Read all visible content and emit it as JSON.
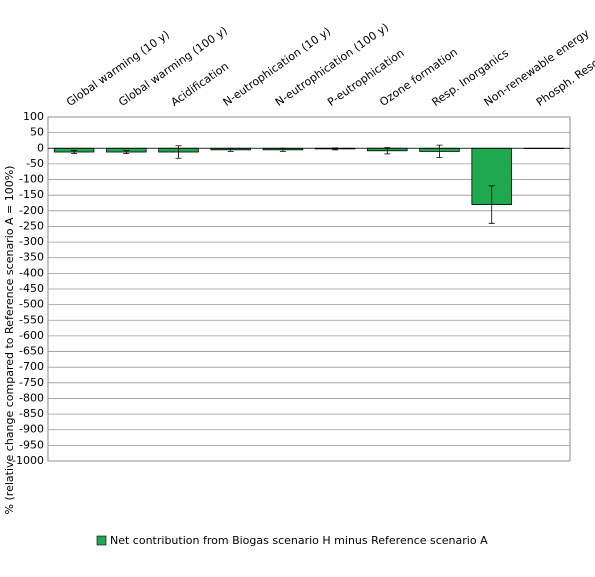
{
  "chart_data": {
    "type": "bar",
    "y_label": "% (relative change compared to Reference scenario A = 100%)",
    "categories": [
      "Global warming (10 y)",
      "Global warming (100 y)",
      "Acidification",
      "N-eutrophication (10 y)",
      "N-eutrophication (100 y)",
      "P-eutrophication",
      "Ozone formation",
      "Resp. Inorganics",
      "Non-renewable energy",
      "Phosph. Resources"
    ],
    "series": [
      {
        "name": "Net contribution from Biogas scenario H minus Reference scenario A",
        "color": "#1ea84f",
        "values": [
          -12,
          -12,
          -12,
          -5,
          -5,
          -2,
          -8,
          -10,
          -180,
          -1
        ],
        "errors": [
          5,
          5,
          20,
          5,
          5,
          3,
          10,
          20,
          60,
          0
        ]
      }
    ],
    "ylim": [
      -1000,
      100
    ],
    "yticks": [
      100,
      50,
      0,
      -50,
      -100,
      -150,
      -200,
      -250,
      -300,
      -350,
      -400,
      -450,
      -500,
      -550,
      -600,
      -650,
      -700,
      -750,
      -800,
      -850,
      -900,
      -950,
      -1000
    ],
    "grid": true,
    "legend": "bottom"
  }
}
